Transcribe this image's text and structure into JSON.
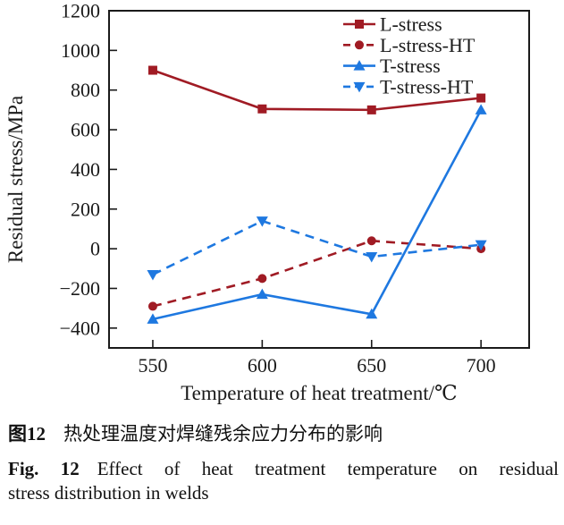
{
  "figure": {
    "caption_zh": {
      "label": "图12",
      "text": "热处理温度对焊缝残余应力分布的影响"
    },
    "caption_en": {
      "label": "Fig. 12",
      "line1": "Effect of heat treatment temperature on residual",
      "line2": "stress distribution in welds"
    }
  },
  "chart_data": {
    "type": "line",
    "title": "",
    "xlabel": "Temperature of heat treatment/℃",
    "ylabel": "Residual stress/MPa",
    "x": [
      550,
      600,
      650,
      700
    ],
    "xlim": [
      530,
      722
    ],
    "ylim": [
      -500,
      1200
    ],
    "xtick_values": [
      550,
      600,
      650,
      700
    ],
    "xtick_labels": [
      "550",
      "600",
      "650",
      "700"
    ],
    "ytick_values": [
      -400,
      -200,
      0,
      200,
      400,
      600,
      800,
      1000,
      1200
    ],
    "ytick_labels": [
      "−400",
      "−200",
      "0",
      "200",
      "400",
      "600",
      "800",
      "1000",
      "1200"
    ],
    "grid": false,
    "legend_position": "top-right-inside",
    "axis_color": "#1a1a1a",
    "series": [
      {
        "name": "L-stress",
        "values": [
          900,
          705,
          700,
          760
        ],
        "color": "#a01b24",
        "line": "solid",
        "marker": "square"
      },
      {
        "name": "L-stress-HT",
        "values": [
          -290,
          -150,
          40,
          0
        ],
        "color": "#a01b24",
        "line": "dashed",
        "marker": "circle"
      },
      {
        "name": "T-stress",
        "values": [
          -355,
          -230,
          -330,
          700
        ],
        "color": "#1e78e0",
        "line": "solid",
        "marker": "triangle-up"
      },
      {
        "name": "T-stress-HT",
        "values": [
          -130,
          140,
          -40,
          20
        ],
        "color": "#1e78e0",
        "line": "dashed",
        "marker": "triangle-down"
      }
    ]
  }
}
